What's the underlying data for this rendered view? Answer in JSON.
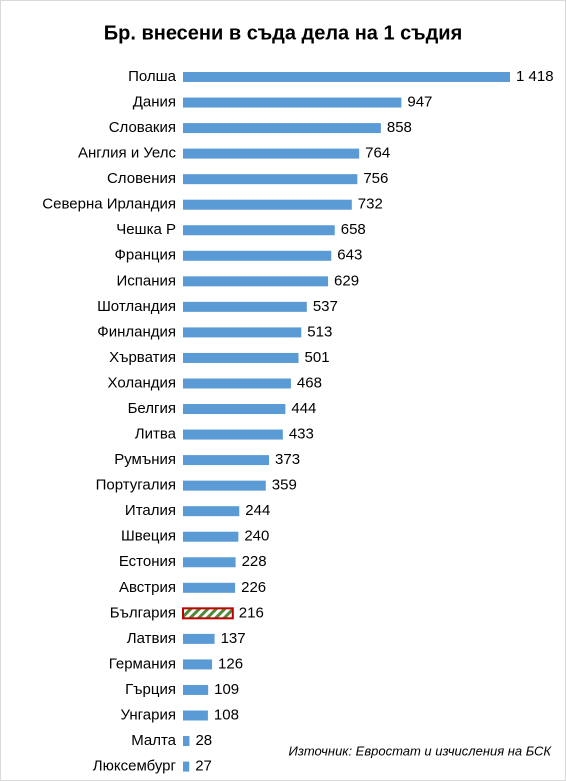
{
  "chart_data": {
    "type": "bar",
    "orientation": "horizontal",
    "title": "Бр. внесени в съда дела на 1 съдия",
    "categories": [
      "Полша",
      "Дания",
      "Словакия",
      "Англия и Уелс",
      "Словения",
      "Северна Ирландия",
      "Чешка Р",
      "Франция",
      "Испания",
      "Шотландия",
      "Финландия",
      "Хърватия",
      "Холандия",
      "Белгия",
      "Литва",
      "Румъния",
      "Португалия",
      "Италия",
      "Швеция",
      "Естония",
      "Австрия",
      "България",
      "Латвия",
      "Германия",
      "Гърция",
      "Унгария",
      "Малта",
      "Люксембург"
    ],
    "values": [
      1418,
      947,
      858,
      764,
      756,
      732,
      658,
      643,
      629,
      537,
      513,
      501,
      468,
      444,
      433,
      373,
      359,
      244,
      240,
      228,
      226,
      216,
      137,
      126,
      109,
      108,
      28,
      27
    ],
    "value_labels": [
      "1 418",
      "947",
      "858",
      "764",
      "756",
      "732",
      "658",
      "643",
      "629",
      "537",
      "513",
      "501",
      "468",
      "444",
      "433",
      "373",
      "359",
      "244",
      "240",
      "228",
      "226",
      "216",
      "137",
      "126",
      "109",
      "108",
      "28",
      "27"
    ],
    "color": "#5b9bd5",
    "highlight": {
      "category_index": 21,
      "fill": "#4e8a3a",
      "stroke": "#c00000"
    },
    "annotation": "Източник: Евростат и изчисления на БСК"
  }
}
